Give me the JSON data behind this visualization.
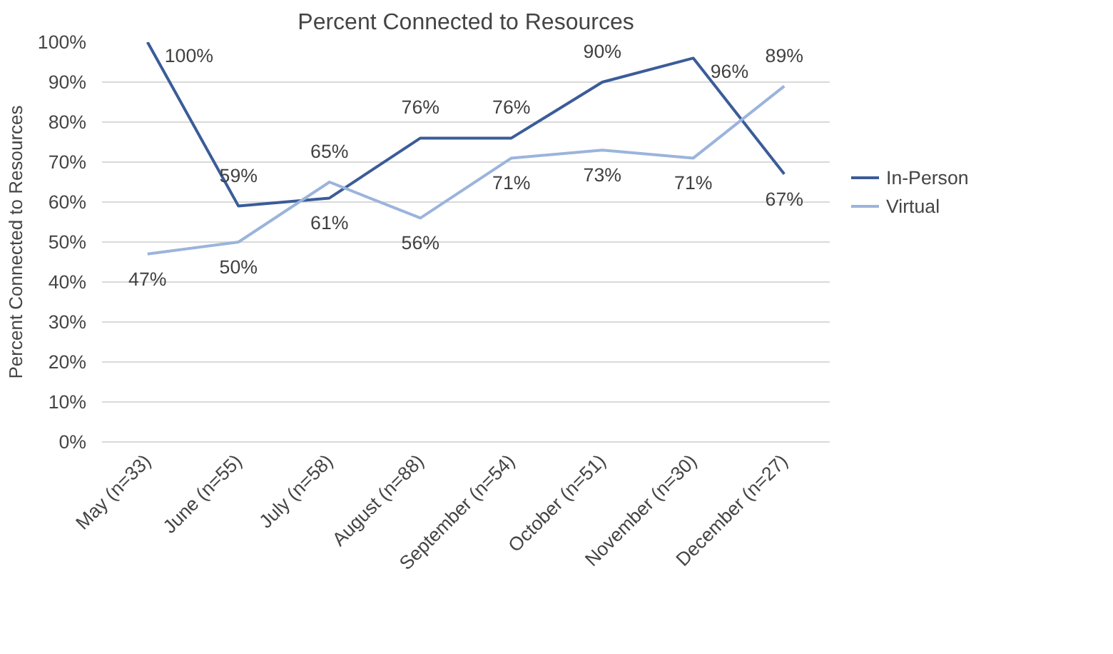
{
  "chart_data": {
    "type": "line",
    "title": "Percent Connected to Resources",
    "ylabel": "Percent Connected to Resources",
    "categories": [
      "May (n=33)",
      "June (n=55)",
      "July (n=58)",
      "August (n=88)",
      "September (n=54)",
      "October (n=51)",
      "November (n=30)",
      "December (n=27)"
    ],
    "series": [
      {
        "name": "In-Person",
        "color": "#3b5c98",
        "values": [
          100,
          59,
          61,
          76,
          76,
          90,
          96,
          67
        ]
      },
      {
        "name": "Virtual",
        "color": "#9bb4dc",
        "values": [
          47,
          50,
          65,
          56,
          71,
          73,
          71,
          89
        ]
      }
    ],
    "ylim": [
      0,
      100
    ],
    "yticks": [
      {
        "value": 0,
        "label": "0%"
      },
      {
        "value": 10,
        "label": "10%"
      },
      {
        "value": 20,
        "label": "20%"
      },
      {
        "value": 30,
        "label": "30%"
      },
      {
        "value": 40,
        "label": "40%"
      },
      {
        "value": 50,
        "label": "50%"
      },
      {
        "value": 60,
        "label": "60%"
      },
      {
        "value": 70,
        "label": "70%"
      },
      {
        "value": 80,
        "label": "80%"
      },
      {
        "value": 90,
        "label": "90%"
      },
      {
        "value": 100,
        "label": "100%"
      }
    ],
    "grid": "y",
    "legend": "right",
    "marker": "none",
    "line_style": "solid",
    "value_labels": [
      [
        "100%",
        "59%",
        "61%",
        "76%",
        "76%",
        "90%",
        "96%",
        "67%"
      ],
      [
        "47%",
        "50%",
        "65%",
        "56%",
        "71%",
        "73%",
        "71%",
        "89%"
      ]
    ]
  }
}
